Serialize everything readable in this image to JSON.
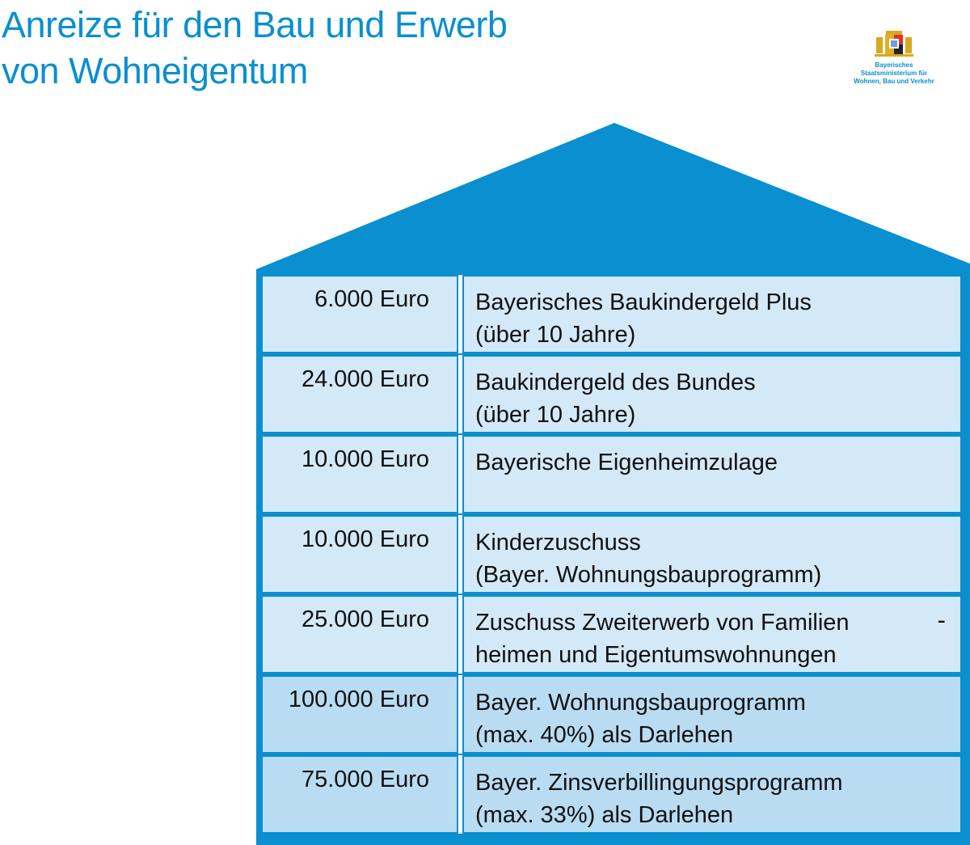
{
  "title": {
    "line1": "Anreize für den Bau und Erwerb",
    "line2": "von Wohneigentum"
  },
  "logo": {
    "line1": "Bayerisches",
    "line2": "Staatsministerium für",
    "line3": "Wohnen, Bau und Verkehr"
  },
  "colors": {
    "brand": "#0a8fd0",
    "cell": "#d4e9f7",
    "cell_loan": "#b9dcf3"
  },
  "rows": [
    {
      "amount": "6.000 Euro",
      "line1": "Bayerisches Baukindergeld Plus",
      "line2": "(über 10 Jahre)"
    },
    {
      "amount": "24.000 Euro",
      "line1": "Baukindergeld des Bundes",
      "line2": "(über 10 Jahre)"
    },
    {
      "amount": "10.000 Euro",
      "line1": "Bayerische Eigenheimzulage",
      "line2": ""
    },
    {
      "amount": "10.000 Euro",
      "line1": "Kinderzuschuss",
      "line2": "(Bayer. Wohnungsbauprogramm)"
    },
    {
      "amount": "25.000 Euro",
      "line1": "Zuschuss Zweiterwerb von Familien",
      "hyphen": "-",
      "line2": "heimen und Eigentumswohnungen"
    },
    {
      "amount": "100.000 Euro",
      "line1": "Bayer. Wohnungsbauprogramm",
      "line2": "(max. 40%) als Darlehen"
    },
    {
      "amount": "75.000 Euro",
      "line1": "Bayer. Zinsverbillingungsprogramm",
      "line2": "(max. 33%) als Darlehen"
    }
  ]
}
